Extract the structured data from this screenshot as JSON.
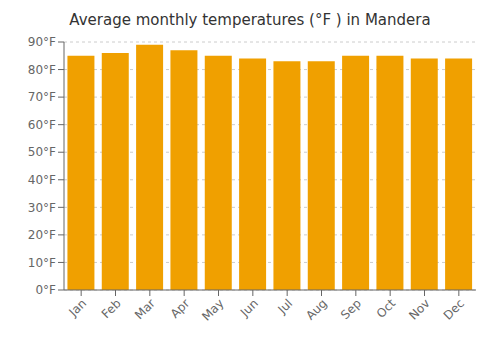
{
  "chart_data": {
    "type": "bar",
    "title": "Average monthly temperatures (°F ) in Mandera",
    "categories": [
      "Jan",
      "Feb",
      "Mar",
      "Apr",
      "May",
      "Jun",
      "Jul",
      "Aug",
      "Sep",
      "Oct",
      "Nov",
      "Dec"
    ],
    "values": [
      85,
      86,
      89,
      87,
      85,
      84,
      83,
      83,
      85,
      85,
      84,
      84
    ],
    "color": "#F0A000",
    "ylim": [
      0,
      90
    ],
    "yticks": [
      {
        "value": 0,
        "label": "0°F"
      },
      {
        "value": 10,
        "label": "10°F"
      },
      {
        "value": 20,
        "label": "20°F"
      },
      {
        "value": 30,
        "label": "30°F"
      },
      {
        "value": 40,
        "label": "40°F"
      },
      {
        "value": 50,
        "label": "50°F"
      },
      {
        "value": 60,
        "label": "60°F"
      },
      {
        "value": 70,
        "label": "70°F"
      },
      {
        "value": 80,
        "label": "80°F"
      },
      {
        "value": 90,
        "label": "90°F"
      }
    ],
    "grid": true
  }
}
